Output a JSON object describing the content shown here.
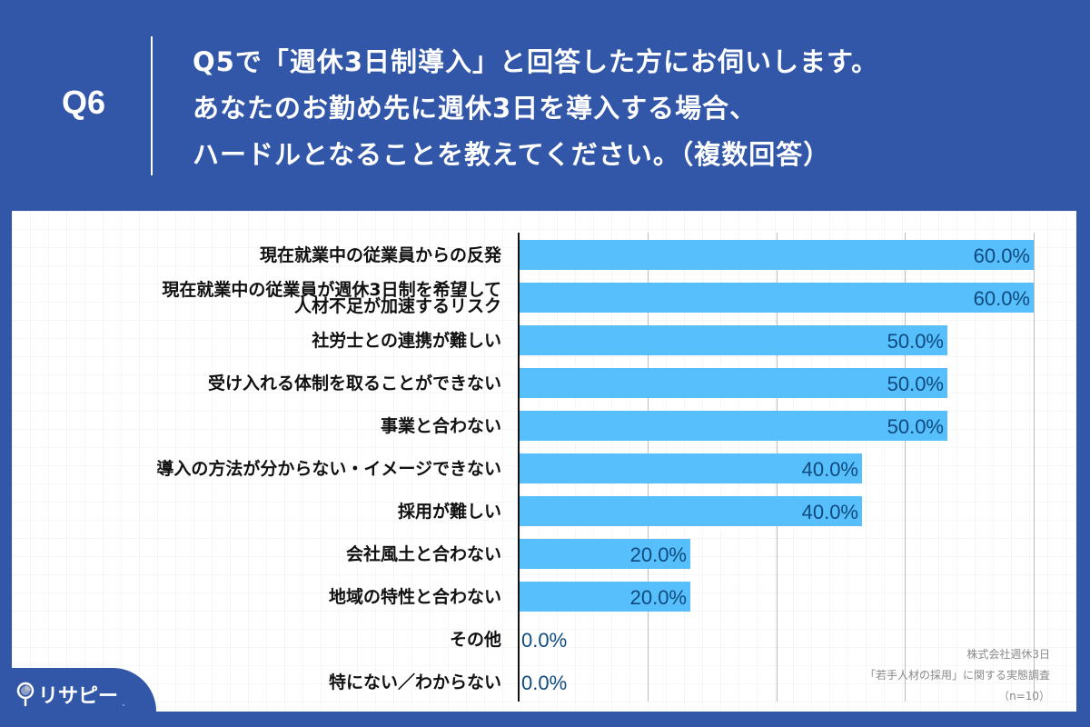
{
  "header": {
    "question_number": "Q6",
    "question_lines": [
      "Q5で「週休3日制導入」と回答した方にお伺いします。",
      "あなたのお勤め先に週休3日を導入する場合、",
      "ハードルとなることを教えてください。（複数回答）"
    ]
  },
  "colors": {
    "background": "#3257a8",
    "bar": "#57bffb",
    "value_text": "#0e4a7e",
    "label_text": "#111111"
  },
  "chart_data": {
    "type": "bar",
    "orientation": "horizontal",
    "title": "Q5で「週休3日制導入」と回答した方にお伺いします。あなたのお勤め先に週休3日を導入する場合、ハードルとなることを教えてください。（複数回答）",
    "categories": [
      "現在就業中の従業員からの反発",
      "現在就業中の従業員が週休3日制を希望して人材不足が加速するリスク",
      "社労士との連携が難しい",
      "受け入れる体制を取ることができない",
      "事業と合わない",
      "導入の方法が分からない・イメージできない",
      "採用が難しい",
      "会社風土と合わない",
      "地域の特性と合わない",
      "その他",
      "特にない／わからない"
    ],
    "values": [
      60.0,
      60.0,
      50.0,
      50.0,
      50.0,
      40.0,
      40.0,
      20.0,
      20.0,
      0.0,
      0.0
    ],
    "value_labels": [
      "60.0%",
      "60.0%",
      "50.0%",
      "50.0%",
      "50.0%",
      "40.0%",
      "40.0%",
      "20.0%",
      "20.0%",
      "0.0%",
      "0.0%"
    ],
    "xlabel": "",
    "ylabel": "",
    "xlim": [
      0,
      60
    ],
    "gridlines": [
      15,
      30,
      45,
      60
    ],
    "grid": true,
    "legend": "none",
    "unit": "%",
    "n": 10
  },
  "rows": [
    {
      "label_lines": [
        "現在就業中の従業員からの反発"
      ],
      "value": 60.0,
      "value_label": "60.0%"
    },
    {
      "label_lines": [
        "現在就業中の従業員が週休3日制を希望して",
        "人材不足が加速するリスク"
      ],
      "value": 60.0,
      "value_label": "60.0%"
    },
    {
      "label_lines": [
        "社労士との連携が難しい"
      ],
      "value": 50.0,
      "value_label": "50.0%"
    },
    {
      "label_lines": [
        "受け入れる体制を取ることができない"
      ],
      "value": 50.0,
      "value_label": "50.0%"
    },
    {
      "label_lines": [
        "事業と合わない"
      ],
      "value": 50.0,
      "value_label": "50.0%"
    },
    {
      "label_lines": [
        "導入の方法が分からない・イメージできない"
      ],
      "value": 40.0,
      "value_label": "40.0%"
    },
    {
      "label_lines": [
        "採用が難しい"
      ],
      "value": 40.0,
      "value_label": "40.0%"
    },
    {
      "label_lines": [
        "会社風土と合わない"
      ],
      "value": 20.0,
      "value_label": "20.0%"
    },
    {
      "label_lines": [
        "地域の特性と合わない"
      ],
      "value": 20.0,
      "value_label": "20.0%"
    },
    {
      "label_lines": [
        "その他"
      ],
      "value": 0.0,
      "value_label": "0.0%"
    },
    {
      "label_lines": [
        "特にない／わからない"
      ],
      "value": 0.0,
      "value_label": "0.0%"
    }
  ],
  "source": {
    "lines": [
      "株式会社週休3日",
      "「若手人材の採用」に関する実態調査",
      "（n=10）"
    ]
  },
  "logo": {
    "icon": "map-pin-icon",
    "text": "リサピー",
    "mark": "."
  }
}
